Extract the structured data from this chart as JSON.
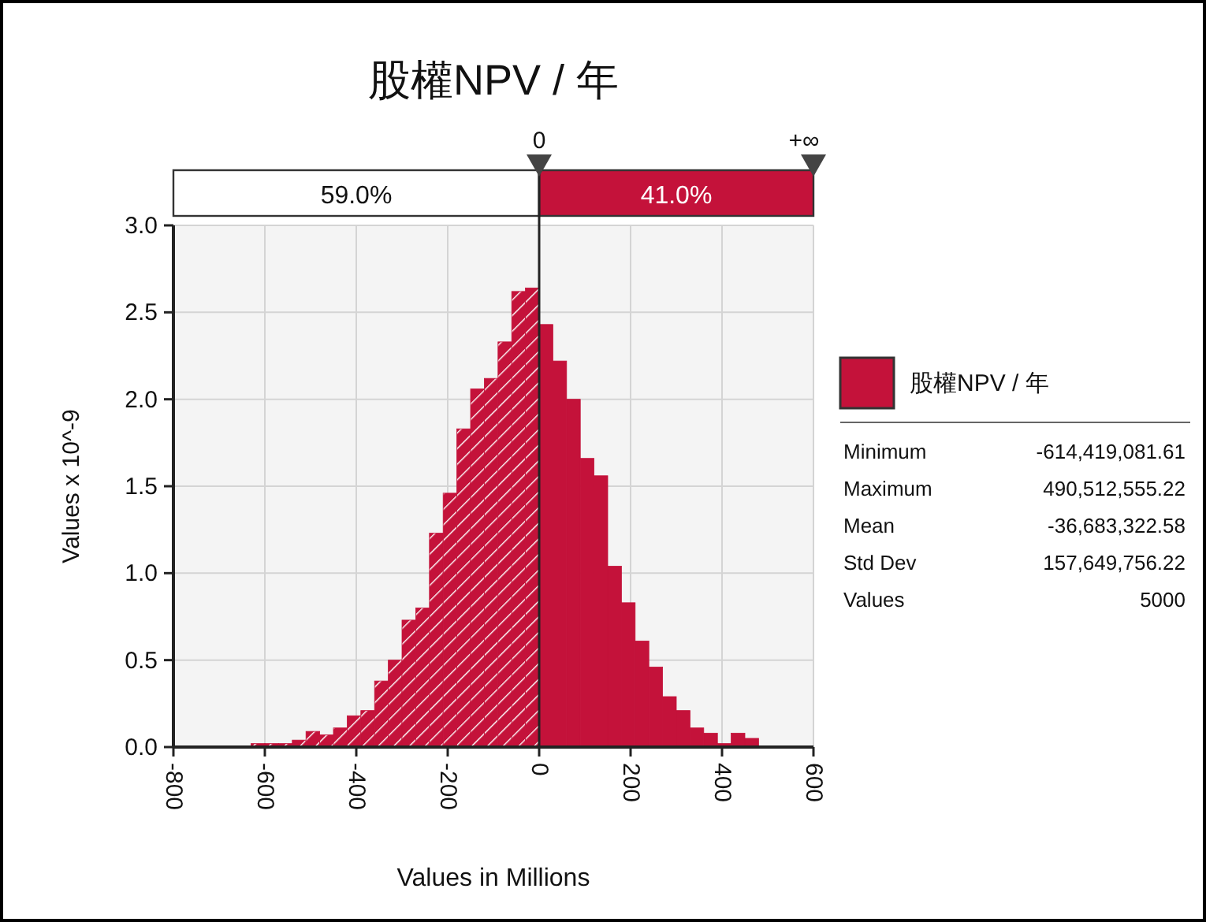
{
  "chart_data": {
    "type": "histogram",
    "title": "股權NPV / 年",
    "xlabel": "Values in Millions",
    "ylabel": "Values x 10^-9",
    "bins": [
      -630,
      -600,
      -570,
      -540,
      -510,
      -480,
      -450,
      -420,
      -390,
      -360,
      -330,
      -300,
      -270,
      -240,
      -210,
      -180,
      -150,
      -120,
      -90,
      -60,
      -30,
      0,
      30,
      60,
      90,
      120,
      150,
      180,
      210,
      240,
      270,
      300,
      330,
      360,
      390,
      420,
      450,
      480
    ],
    "series": [
      {
        "name": "股權NPV / 年",
        "color": "#c4123a",
        "values": [
          0.02,
          0.02,
          0.02,
          0.04,
          0.09,
          0.07,
          0.11,
          0.18,
          0.21,
          0.38,
          0.5,
          0.73,
          0.8,
          1.23,
          1.46,
          1.83,
          2.06,
          2.12,
          2.33,
          2.62,
          2.64,
          2.43,
          2.22,
          2.0,
          1.66,
          1.56,
          1.04,
          0.83,
          0.61,
          0.46,
          0.29,
          0.21,
          0.11,
          0.08,
          0.02,
          0.08,
          0.05
        ]
      }
    ],
    "xlim": [
      -800,
      600
    ],
    "xticks": [
      -800,
      -600,
      -400,
      -200,
      0,
      200,
      400,
      600
    ],
    "ylim": [
      0,
      3.0
    ],
    "yticks": [
      {
        "value": 0,
        "label": "0.0"
      },
      {
        "value": 0.5,
        "label": "0.5"
      },
      {
        "value": 1.0,
        "label": "1.0"
      },
      {
        "value": 1.5,
        "label": "1.5"
      },
      {
        "value": 2.0,
        "label": "2.0"
      },
      {
        "value": 2.5,
        "label": "2.5"
      },
      {
        "value": 3.0,
        "label": "3.0"
      }
    ],
    "grid": true,
    "legend": "right",
    "ref_lines": [
      {
        "axis": "x",
        "value": 0,
        "label": "0"
      }
    ],
    "annotations": [
      "+∞",
      "59.0%",
      "41.0%",
      "Minimum",
      "-614,419,081.61",
      "Maximum",
      "490,512,555.22",
      "Mean",
      "-36,683,322.58",
      "Std Dev",
      "157,649,756.22",
      "Values",
      "5000"
    ]
  }
}
